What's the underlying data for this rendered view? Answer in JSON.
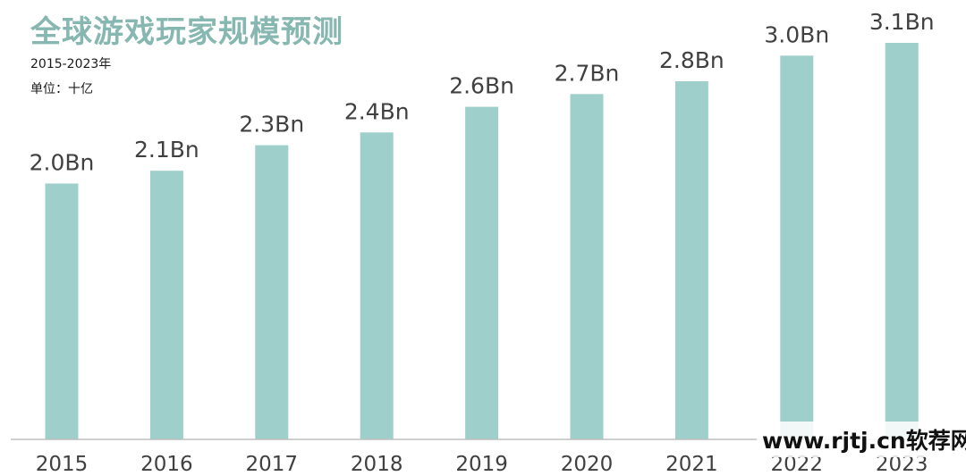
{
  "chart_data": {
    "type": "bar",
    "title": "全球游戏玩家规模预测",
    "subtitle": "2015-2023年",
    "unit_label": "单位：十亿",
    "categories": [
      "2015",
      "2016",
      "2017",
      "2018",
      "2019",
      "2020",
      "2021",
      "2022",
      "2023"
    ],
    "values": [
      2.0,
      2.1,
      2.3,
      2.4,
      2.6,
      2.7,
      2.8,
      3.0,
      3.1
    ],
    "data_labels": [
      "2.0Bn",
      "2.1Bn",
      "2.3Bn",
      "2.4Bn",
      "2.6Bn",
      "2.7Bn",
      "2.8Bn",
      "3.0Bn",
      "3.1Bn"
    ],
    "xlabel": "",
    "ylabel": "",
    "ylim": [
      0,
      3.1
    ],
    "grid": false,
    "bar_color": "#9ecfcb",
    "title_color": "#86b7b0"
  },
  "watermark": "www.rjtj.cn软荐网"
}
